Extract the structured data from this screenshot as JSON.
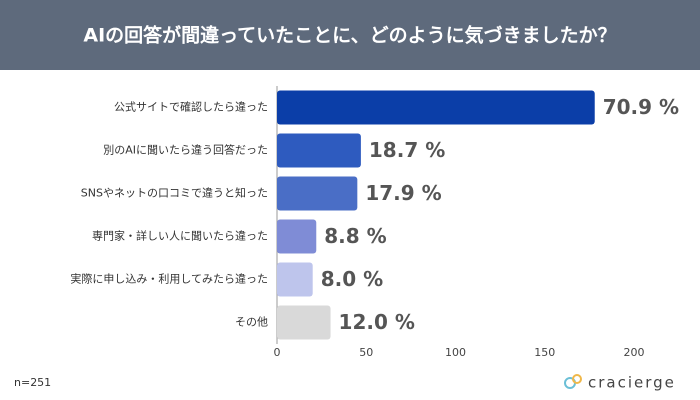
{
  "chart_data": {
    "type": "barh",
    "title": "AIの回答が間違っていたことに、どのように気づきましたか？",
    "categories": [
      "公式サイトで確認したら違った",
      "別のAIに聞いたら違う回答だった",
      "SNSやネットの口コミで違うと知った",
      "専門家・詳しい人に聞いたら違った",
      "実際に申し込み・利用してみたら違った",
      "その他"
    ],
    "values": [
      178,
      47,
      45,
      22,
      20,
      30
    ],
    "value_labels": [
      "70.9 %",
      "18.7 %",
      "17.9 %",
      "8.8 %",
      "8.0 %",
      "12.0 %"
    ],
    "colors": [
      "#0b3ea8",
      "#2e5bbf",
      "#4a6ec6",
      "#7f8cd6",
      "#bec5ec",
      "#d9d9d9"
    ],
    "xlim": [
      0,
      200
    ],
    "xticks": [
      0,
      50,
      100,
      150,
      200
    ],
    "grid": false,
    "note": "n=251",
    "brand": "cracierge"
  }
}
